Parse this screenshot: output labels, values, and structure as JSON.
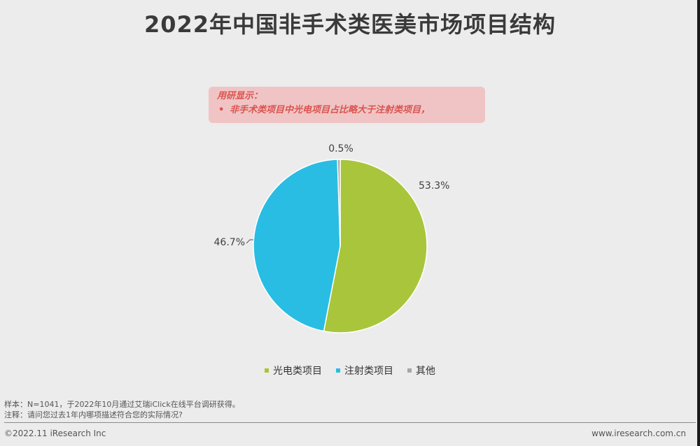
{
  "title": "2022年中国非手术类医美市场项目结构",
  "callout": {
    "heading": "用研显示：",
    "bullet": "•",
    "text": "非手术类项目中光电项目占比略大于注射类项目，"
  },
  "chart_data": {
    "type": "pie",
    "title": "2022年中国非手术类医美市场项目结构",
    "slices": [
      {
        "name": "光电类项目",
        "value": 53.3,
        "label": "53.3%",
        "color": "#a9c53b"
      },
      {
        "name": "注射类项目",
        "value": 46.7,
        "label": "46.7%",
        "color": "#29bde3"
      },
      {
        "name": "其他",
        "value": 0.5,
        "label": "0.5%",
        "color": "#a6a6a6"
      }
    ],
    "legend_position": "bottom"
  },
  "footnotes": {
    "sample": "样本：N=1041，于2022年10月通过艾瑞iClick在线平台调研获得。",
    "note": "注释：请问您过去1年内哪项描述符合您的实际情况?"
  },
  "footer": {
    "copyright": "©2022.11 iResearch Inc",
    "website": "www.iresearch.com.cn"
  }
}
